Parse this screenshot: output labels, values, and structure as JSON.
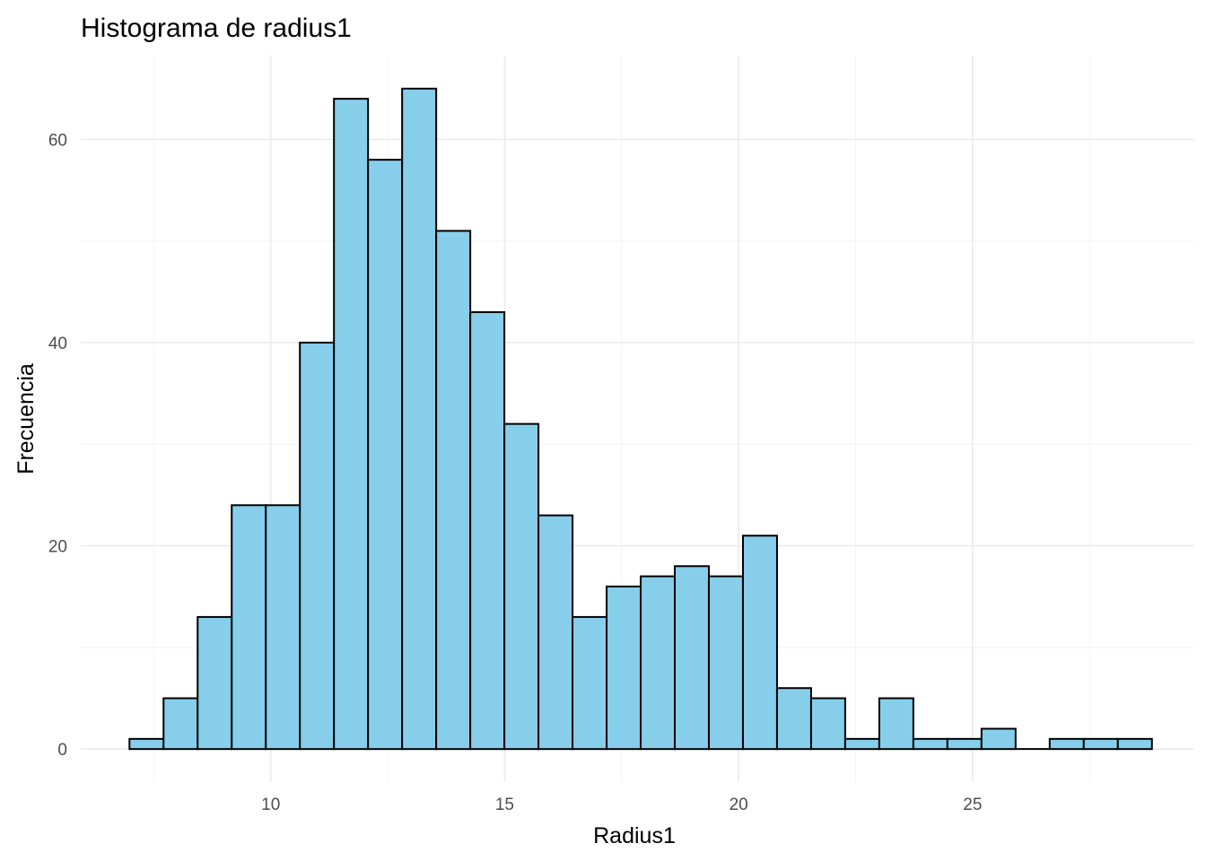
{
  "chart_data": {
    "type": "bar",
    "title": "Histograma de radius1",
    "xlabel": "Radius1",
    "ylabel": "Frecuencia",
    "xlim": [
      5.94,
      29.72
    ],
    "ylim": [
      -3.25,
      68.25
    ],
    "x_ticks": [
      10,
      15,
      20,
      25
    ],
    "y_ticks": [
      0,
      20,
      40,
      60
    ],
    "bin_start": 6.981,
    "bin_width": 0.7284,
    "values": [
      1,
      5,
      13,
      24,
      24,
      40,
      64,
      58,
      65,
      51,
      43,
      32,
      23,
      13,
      16,
      17,
      18,
      17,
      21,
      6,
      5,
      1,
      5,
      1,
      1,
      2,
      0,
      1,
      1,
      1
    ],
    "bar_color": "#87ceeb",
    "bar_outline": "#000000",
    "grid": true
  }
}
